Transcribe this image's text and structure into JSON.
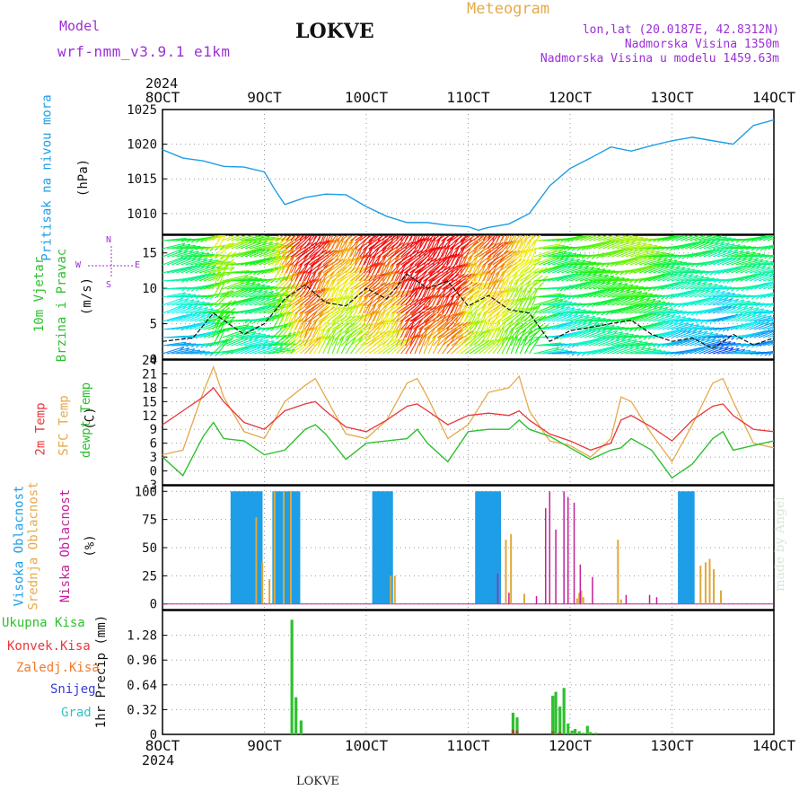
{
  "header": {
    "model_label": "Model",
    "model_name": "wrf-nmm_v3.9.1 e1km",
    "station": "LOKVE",
    "app_title": "Meteogram",
    "coords": "lon,lat (20.0187E, 42.8312N)",
    "altitude": "Nadmorska Visina 1350m",
    "model_altitude": "Nadmorska Visina u modelu 1459.63m",
    "footer_station": "LOKVE",
    "watermark": "made by Angel"
  },
  "colors": {
    "purple": "#9b2fd6",
    "orange": "#e6a94a",
    "blue": "#1e9ee6",
    "red": "#e8383a",
    "green": "#2fc02f",
    "darkred": "#e04a3a",
    "snow": "#3a3ad8",
    "grad": "#2ec4c4",
    "cloud_mid": "#e0a838",
    "cloud_low": "#c0209a"
  },
  "time_axis": {
    "year": "2024",
    "ticks": [
      "8OCT",
      "9OCT",
      "10OCT",
      "11OCT",
      "12OCT",
      "13OCT",
      "14OCT"
    ],
    "start_day": 8,
    "end_day": 14
  },
  "panels": {
    "pressure": {
      "ylabel": [
        "Pritisak na nivou mora",
        "(hPa)"
      ],
      "ticks": [
        "1010",
        "1015",
        "1020",
        "1025"
      ]
    },
    "wind": {
      "ylabel": [
        "10m Vjetar",
        "Brzina i Pravac",
        "(m/s)"
      ],
      "ticks": [
        "0",
        "5",
        "10",
        "15"
      ],
      "compass": [
        "N",
        "W",
        "E",
        "S"
      ]
    },
    "temp": {
      "ylabel": [
        "2m Temp",
        "SFC Temp",
        "dewpt Temp",
        "(C)"
      ],
      "ticks": [
        "-3",
        "0",
        "3",
        "6",
        "9",
        "12",
        "15",
        "18",
        "21",
        "24"
      ]
    },
    "cloud": {
      "ylabel": [
        "Visoka Oblacnost",
        "Srednja Oblacnost",
        "Niska Oblacnost",
        "(%)"
      ],
      "ticks": [
        "0",
        "25",
        "50",
        "75",
        "100"
      ]
    },
    "precip": {
      "ylabel": [
        "1hr Precip (mm)"
      ],
      "ticks": [
        "0",
        "0.32",
        "0.64",
        "0.96",
        "1.28"
      ],
      "legend": [
        "Ukupna Kisa",
        "Konvek.Kisa",
        "Zaledj.Kisa",
        "Snijeg",
        "Grad"
      ]
    }
  },
  "chart_data": [
    {
      "type": "line",
      "title": "",
      "ylabel": "Pritisak na nivou mora (hPa)",
      "ylim": [
        1007,
        1025
      ],
      "series": [
        {
          "name": "",
          "x": [
            8.0,
            8.2,
            8.4,
            8.6,
            8.8,
            9.0,
            9.1,
            9.2,
            9.3,
            9.4,
            9.6,
            9.8,
            10.0,
            10.2,
            10.4,
            10.6,
            10.8,
            11.0,
            11.1,
            11.2,
            11.4,
            11.6,
            11.8,
            12.0,
            12.2,
            12.4,
            12.6,
            12.8,
            13.0,
            13.2,
            13.4,
            13.6,
            13.8,
            14.0
          ],
          "y": [
            1019.2,
            1018.0,
            1017.6,
            1016.8,
            1016.7,
            1016.0,
            1013.5,
            1011.3,
            1011.8,
            1012.3,
            1012.8,
            1012.7,
            1011.0,
            1009.6,
            1008.7,
            1008.7,
            1008.3,
            1008.1,
            1007.6,
            1008.0,
            1008.5,
            1010.0,
            1014.0,
            1016.5,
            1018.0,
            1019.6,
            1019.0,
            1019.8,
            1020.5,
            1021.0,
            1020.5,
            1020.0,
            1022.7,
            1023.5
          ]
        }
      ]
    },
    {
      "type": "line",
      "title": "",
      "ylabel": "10m Vjetar Brzina i Pravac (m/s)",
      "ylim": [
        0,
        17.5
      ],
      "series": [
        {
          "name": "",
          "x": [
            8.0,
            8.3,
            8.5,
            8.8,
            9.0,
            9.2,
            9.4,
            9.6,
            9.8,
            10.0,
            10.2,
            10.4,
            10.6,
            10.8,
            11.0,
            11.2,
            11.4,
            11.6,
            11.8,
            12.0,
            12.2,
            12.4,
            12.6,
            12.8,
            13.0,
            13.2,
            13.4,
            13.6,
            13.8,
            14.0
          ],
          "y": [
            2.5,
            3.0,
            6.5,
            3.5,
            5.0,
            8.5,
            10.5,
            8.0,
            7.5,
            10.0,
            8.5,
            12.0,
            10.0,
            11.0,
            7.5,
            9.0,
            7.0,
            6.5,
            2.5,
            4.0,
            4.5,
            5.0,
            5.5,
            3.5,
            2.5,
            3.0,
            1.5,
            3.5,
            2.0,
            3.0
          ]
        }
      ]
    },
    {
      "type": "line",
      "title": "",
      "ylabel": "(C)",
      "ylim": [
        -3,
        24
      ],
      "series": [
        {
          "name": "2m Temp",
          "x": [
            8.0,
            8.2,
            8.4,
            8.5,
            8.6,
            8.8,
            9.0,
            9.2,
            9.4,
            9.5,
            9.6,
            9.8,
            10.0,
            10.2,
            10.4,
            10.5,
            10.6,
            10.8,
            11.0,
            11.2,
            11.4,
            11.5,
            11.6,
            11.8,
            12.0,
            12.2,
            12.4,
            12.5,
            12.6,
            12.8,
            13.0,
            13.2,
            13.4,
            13.5,
            13.6,
            13.8,
            14.0
          ],
          "y": [
            10.0,
            13.0,
            16.0,
            18.0,
            15.0,
            10.5,
            9.0,
            13.0,
            14.5,
            15.0,
            13.0,
            9.5,
            8.5,
            11.0,
            14.0,
            14.5,
            13.0,
            10.0,
            12.0,
            12.5,
            12.0,
            13.0,
            11.0,
            8.0,
            6.5,
            4.5,
            6.0,
            11.0,
            12.0,
            9.5,
            6.5,
            11.0,
            14.0,
            14.5,
            12.0,
            9.0,
            8.5
          ]
        },
        {
          "name": "SFC Temp",
          "x": [
            8.0,
            8.2,
            8.4,
            8.5,
            8.6,
            8.8,
            9.0,
            9.2,
            9.4,
            9.5,
            9.6,
            9.8,
            10.0,
            10.2,
            10.4,
            10.5,
            10.6,
            10.8,
            11.0,
            11.2,
            11.4,
            11.5,
            11.6,
            11.8,
            12.0,
            12.2,
            12.4,
            12.5,
            12.6,
            12.8,
            13.0,
            13.2,
            13.4,
            13.5,
            13.6,
            13.8,
            14.0
          ],
          "y": [
            3.5,
            4.5,
            17.0,
            22.5,
            16.0,
            8.5,
            7.0,
            15.0,
            18.5,
            20.0,
            16.0,
            8.0,
            7.0,
            11.0,
            19.0,
            20.0,
            16.0,
            7.0,
            10.0,
            17.0,
            18.0,
            20.5,
            13.0,
            6.5,
            5.5,
            3.0,
            7.0,
            16.0,
            15.0,
            8.0,
            2.0,
            10.0,
            19.0,
            20.0,
            15.0,
            6.0,
            5.0
          ]
        },
        {
          "name": "dewpt Temp",
          "x": [
            8.0,
            8.2,
            8.4,
            8.5,
            8.6,
            8.8,
            9.0,
            9.2,
            9.4,
            9.5,
            9.6,
            9.8,
            10.0,
            10.2,
            10.4,
            10.5,
            10.6,
            10.8,
            11.0,
            11.2,
            11.4,
            11.5,
            11.6,
            11.8,
            12.0,
            12.2,
            12.4,
            12.5,
            12.6,
            12.8,
            13.0,
            13.2,
            13.4,
            13.5,
            13.6,
            13.8,
            14.0
          ],
          "y": [
            3.0,
            -1.0,
            7.5,
            10.5,
            7.0,
            6.5,
            3.5,
            4.5,
            9.0,
            10.0,
            8.0,
            2.5,
            6.0,
            6.5,
            7.0,
            9.0,
            6.0,
            2.0,
            8.5,
            9.0,
            9.0,
            11.0,
            9.0,
            7.5,
            5.0,
            2.5,
            4.5,
            5.0,
            7.0,
            4.5,
            -1.5,
            1.5,
            7.0,
            8.5,
            4.5,
            5.5,
            6.5
          ]
        }
      ]
    },
    {
      "type": "bar",
      "title": "",
      "ylabel": "(%)",
      "ylim": [
        0,
        100
      ],
      "series": [
        {
          "name": "Visoka Oblacnost",
          "x": [
            8.69,
            8.72,
            8.75,
            8.79,
            8.82,
            8.86,
            8.89,
            8.93,
            8.96,
            9.1,
            9.13,
            9.17,
            9.21,
            9.25,
            9.29,
            9.33,
            10.08,
            10.11,
            10.14,
            10.17,
            10.21,
            10.24,
            11.09,
            11.12,
            11.15,
            11.18,
            11.22,
            11.26,
            11.3,
            13.08,
            13.12,
            13.16,
            13.2
          ],
          "y": [
            100,
            100,
            100,
            100,
            100,
            100,
            100,
            100,
            100,
            100,
            100,
            100,
            100,
            100,
            100,
            100,
            100,
            100,
            100,
            100,
            100,
            100,
            100,
            100,
            100,
            100,
            100,
            100,
            100,
            100,
            100,
            100,
            100
          ]
        },
        {
          "name": "Srednja Oblacnost",
          "x": [
            8.92,
            8.98,
            9.05,
            9.1,
            9.19,
            9.26,
            10.24,
            10.28,
            11.37,
            11.42,
            11.55,
            12.07,
            12.09,
            12.11,
            12.13,
            12.47,
            12.5,
            13.28,
            13.33,
            13.37,
            13.41,
            13.48
          ],
          "y": [
            77,
            37,
            22,
            100,
            100,
            100,
            25,
            25,
            57,
            62,
            9,
            5,
            10,
            12,
            6,
            57,
            4,
            34,
            37,
            40,
            31,
            12
          ]
        },
        {
          "name": "Niska Oblacnost",
          "x": [
            11.29,
            11.4,
            11.67,
            11.76,
            11.8,
            11.86,
            11.94,
            11.98,
            12.04,
            12.1,
            12.22,
            12.55,
            12.78,
            12.85
          ],
          "y": [
            27,
            10,
            7,
            85,
            100,
            66,
            100,
            95,
            90,
            35,
            24,
            8,
            8,
            6
          ]
        }
      ]
    },
    {
      "type": "bar",
      "title": "",
      "ylabel": "1hr Precip (mm)",
      "ylim": [
        0,
        1.6
      ],
      "series": [
        {
          "name": "Ukupna Kisa",
          "x": [
            9.27,
            9.31,
            9.36,
            11.44,
            11.48,
            11.83,
            11.86,
            11.9,
            11.94,
            11.98,
            12.02,
            12.05,
            12.09,
            12.13,
            12.17,
            12.2,
            12.25
          ],
          "y": [
            1.48,
            0.48,
            0.18,
            0.28,
            0.22,
            0.5,
            0.55,
            0.36,
            0.6,
            0.14,
            0.05,
            0.07,
            0.04,
            0.02,
            0.11,
            0.03,
            0.02
          ]
        },
        {
          "name": "Konvek.Kisa",
          "x": [
            11.44,
            11.48,
            11.83,
            11.9
          ],
          "y": [
            0.06,
            0.05,
            0.04,
            0.03
          ]
        }
      ]
    }
  ]
}
